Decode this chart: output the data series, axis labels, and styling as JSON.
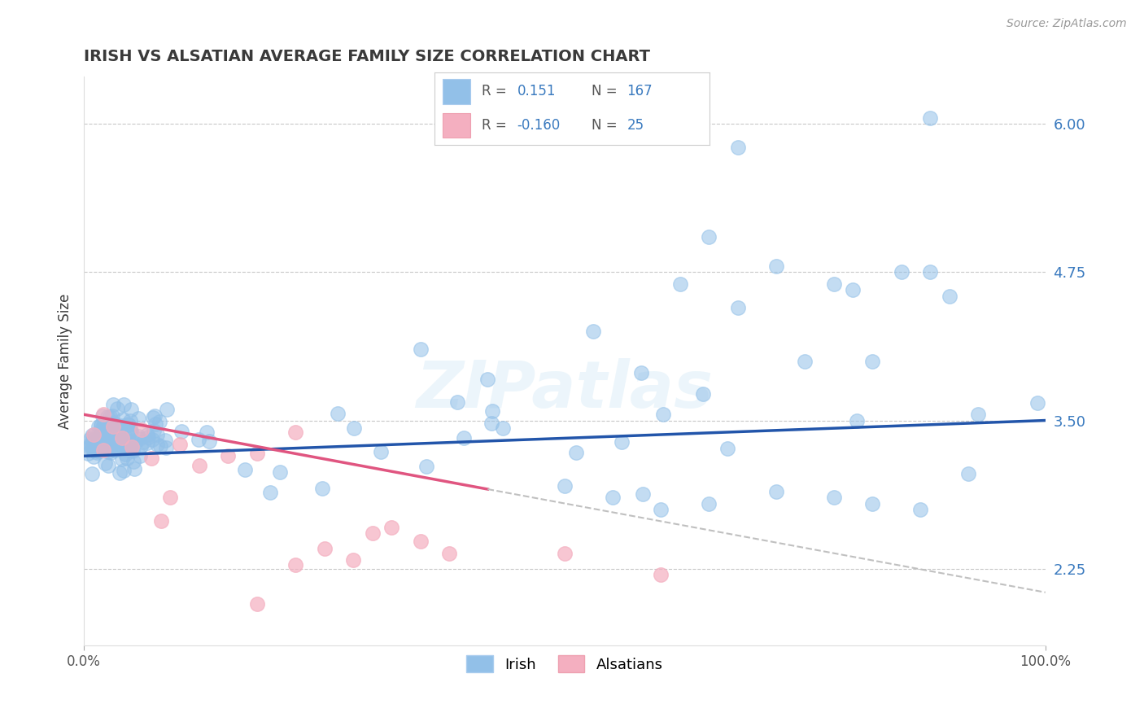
{
  "title": "IRISH VS ALSATIAN AVERAGE FAMILY SIZE CORRELATION CHART",
  "source_text": "Source: ZipAtlas.com",
  "ylabel": "Average Family Size",
  "xlim": [
    0.0,
    1.0
  ],
  "ylim": [
    1.6,
    6.4
  ],
  "yticks": [
    2.25,
    3.5,
    4.75,
    6.0
  ],
  "ytick_labels": [
    "2.25",
    "3.50",
    "4.75",
    "6.00"
  ],
  "xticks": [
    0.0,
    1.0
  ],
  "xticklabels": [
    "0.0%",
    "100.0%"
  ],
  "title_color": "#3a3a3a",
  "title_fontsize": 14,
  "background_color": "#ffffff",
  "grid_color": "#c8c8c8",
  "irish_color": "#92c0e8",
  "alsatian_color": "#f4afc0",
  "irish_line_color": "#2255aa",
  "alsatian_line_color": "#e05580",
  "dash_line_color": "#c0c0c0",
  "irish_R": 0.151,
  "irish_N": 167,
  "alsatian_R": -0.16,
  "alsatian_N": 25,
  "watermark": "ZIPatlas",
  "legend_irish_label": "Irish",
  "legend_alsatian_label": "Alsatians",
  "legend_R1": "0.151",
  "legend_N1": "167",
  "legend_R2": "-0.160",
  "legend_N2": "25"
}
